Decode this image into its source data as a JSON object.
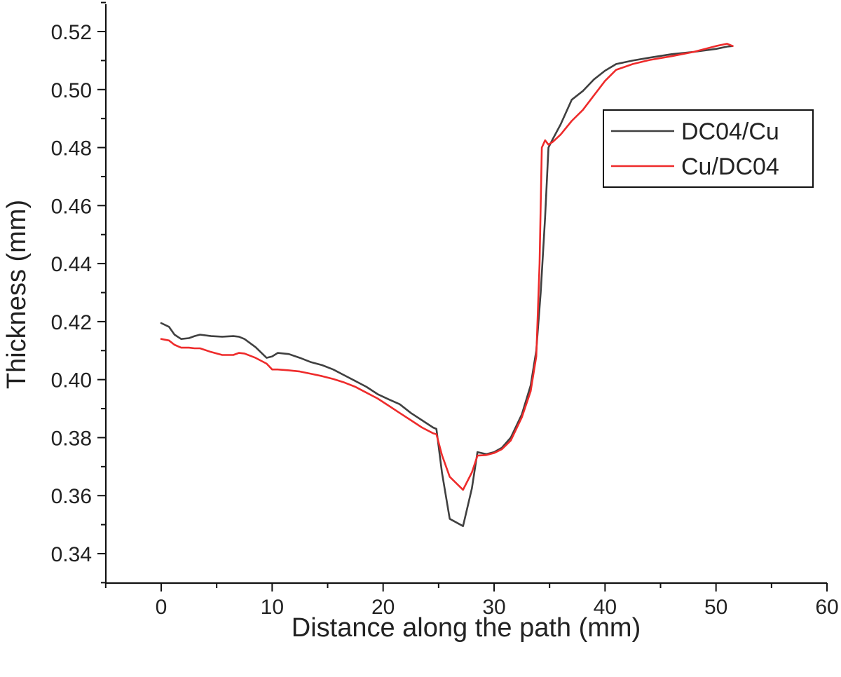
{
  "chart_data": {
    "type": "line",
    "title": "",
    "xlabel": "Distance along the path (mm)",
    "ylabel": "Thickness (mm)",
    "xlim": [
      -5,
      60
    ],
    "ylim": [
      0.33,
      0.53
    ],
    "xticks": [
      0,
      10,
      20,
      30,
      40,
      50,
      60
    ],
    "xtick_labels": [
      "0",
      "10",
      "20",
      "30",
      "40",
      "50",
      "60"
    ],
    "yticks": [
      0.34,
      0.36,
      0.38,
      0.4,
      0.42,
      0.44,
      0.46,
      0.48,
      0.5,
      0.52
    ],
    "ytick_labels": [
      "0.34",
      "0.36",
      "0.38",
      "0.40",
      "0.42",
      "0.44",
      "0.46",
      "0.48",
      "0.50",
      "0.52"
    ],
    "legend_position": "upper-right",
    "series": [
      {
        "name": "DC04/Cu",
        "color": "#404040",
        "x": [
          0,
          0.7,
          1.2,
          1.8,
          2.5,
          3.0,
          3.5,
          4.5,
          5.5,
          6.5,
          7.0,
          7.5,
          8.5,
          9.5,
          10.0,
          10.5,
          11.5,
          12.5,
          13.5,
          14.5,
          15.5,
          16.5,
          17.5,
          18.5,
          19.5,
          20.5,
          21.5,
          22.5,
          23.5,
          24.5,
          24.8,
          25.3,
          26.0,
          27.2,
          28.0,
          28.5,
          29.3,
          30.0,
          30.7,
          31.5,
          32.5,
          33.3,
          33.8,
          34.2,
          34.6,
          34.9,
          35.3,
          36.0,
          37.0,
          38.0,
          39.0,
          40.0,
          41.0,
          42.5,
          44.0,
          46.0,
          48.0,
          50.0,
          51.0,
          51.5
        ],
        "y": [
          0.4195,
          0.4182,
          0.4155,
          0.414,
          0.4143,
          0.415,
          0.4155,
          0.415,
          0.4148,
          0.415,
          0.4148,
          0.414,
          0.4112,
          0.4075,
          0.408,
          0.4092,
          0.4088,
          0.4075,
          0.406,
          0.405,
          0.4035,
          0.4015,
          0.3995,
          0.3975,
          0.395,
          0.3932,
          0.3915,
          0.3885,
          0.386,
          0.3835,
          0.383,
          0.368,
          0.352,
          0.3495,
          0.3625,
          0.375,
          0.3743,
          0.375,
          0.3765,
          0.38,
          0.388,
          0.398,
          0.41,
          0.43,
          0.456,
          0.48,
          0.483,
          0.488,
          0.4965,
          0.4995,
          0.5035,
          0.5065,
          0.5088,
          0.51,
          0.511,
          0.5122,
          0.513,
          0.514,
          0.5148,
          0.515
        ]
      },
      {
        "name": "Cu/DC04",
        "color": "#ee2b2b",
        "x": [
          0,
          0.7,
          1.2,
          1.8,
          2.5,
          3.0,
          3.5,
          4.5,
          5.5,
          6.5,
          7.0,
          7.5,
          8.5,
          9.5,
          10.0,
          10.5,
          11.5,
          12.5,
          13.5,
          14.5,
          15.5,
          16.5,
          17.5,
          18.5,
          19.5,
          20.5,
          21.5,
          22.5,
          23.5,
          24.5,
          24.8,
          25.3,
          26.0,
          27.2,
          28.0,
          28.5,
          29.3,
          30.0,
          30.7,
          31.5,
          32.5,
          33.3,
          33.8,
          34.1,
          34.3,
          34.6,
          34.9,
          35.3,
          36.0,
          37.0,
          38.0,
          39.0,
          40.0,
          41.0,
          42.5,
          44.0,
          46.0,
          48.0,
          50.0,
          51.0,
          51.5
        ],
        "y": [
          0.414,
          0.4135,
          0.412,
          0.411,
          0.411,
          0.4108,
          0.4108,
          0.4095,
          0.4085,
          0.4085,
          0.4092,
          0.409,
          0.4075,
          0.4055,
          0.4035,
          0.4035,
          0.4032,
          0.4028,
          0.402,
          0.4012,
          0.4002,
          0.399,
          0.3975,
          0.3955,
          0.3935,
          0.391,
          0.3885,
          0.386,
          0.3835,
          0.3815,
          0.3812,
          0.374,
          0.3665,
          0.362,
          0.368,
          0.3738,
          0.374,
          0.3747,
          0.376,
          0.379,
          0.387,
          0.396,
          0.408,
          0.44,
          0.48,
          0.4825,
          0.481,
          0.482,
          0.4845,
          0.4892,
          0.493,
          0.498,
          0.503,
          0.5068,
          0.5088,
          0.5102,
          0.5115,
          0.513,
          0.515,
          0.5158,
          0.515
        ]
      }
    ]
  }
}
